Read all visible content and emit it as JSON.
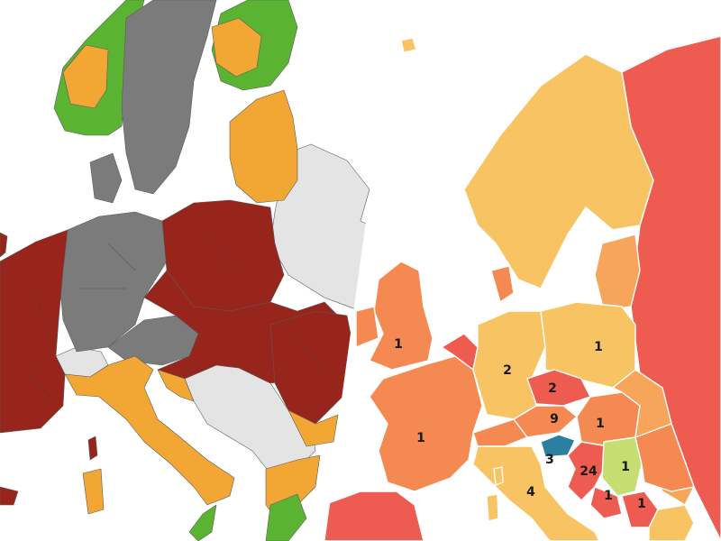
{
  "colors": {
    "left_map": {
      "sea": "#ffffff",
      "non_eu_land": "#e4e4e4",
      "dark_red": "#98251b",
      "grey": "#7b7b7b",
      "orange": "#f2a734",
      "green": "#5bb431"
    },
    "right_map": {
      "sea": "#ffffff",
      "pale_orange": "#f8c463",
      "light_orange": "#f7a55b",
      "orange": "#f48a52",
      "red": "#ee5b50",
      "light_green": "#c5dd71",
      "blue": "#2d7f9f"
    }
  },
  "right_map_labels": [
    {
      "id": "uk",
      "text": "1"
    },
    {
      "id": "germany",
      "text": "2"
    },
    {
      "id": "poland",
      "text": "1"
    },
    {
      "id": "czechia",
      "text": "2"
    },
    {
      "id": "austria",
      "text": "9"
    },
    {
      "id": "hungary",
      "text": "1"
    },
    {
      "id": "france",
      "text": "1"
    },
    {
      "id": "slovenia",
      "text": "3"
    },
    {
      "id": "croatia",
      "text": "24"
    },
    {
      "id": "serbia",
      "text": "1"
    },
    {
      "id": "italy",
      "text": "4"
    },
    {
      "id": "montenegro",
      "text": "1"
    },
    {
      "id": "kosovo",
      "text": "1"
    }
  ]
}
